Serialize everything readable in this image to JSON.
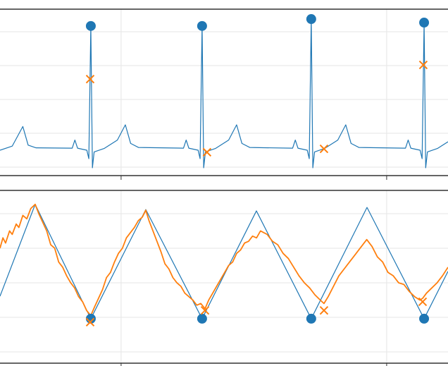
{
  "chart_data": [
    {
      "type": "line",
      "xlim": [
        1.088,
        4.462
      ],
      "ylim": [
        -0.25,
        4.667
      ],
      "xticks": [
        2,
        4
      ],
      "yticks": [
        0,
        1,
        2,
        3,
        4
      ],
      "grid": true,
      "series": [
        {
          "style": "line",
          "color": "#1f77b4",
          "x": [
            1.088,
            1.18,
            1.26,
            1.3,
            1.36,
            1.632,
            1.652,
            1.672,
            1.742,
            1.757,
            1.772,
            1.784,
            1.797,
            1.872,
            1.972,
            2.032,
            2.072,
            2.132,
            2.47,
            2.49,
            2.51,
            2.58,
            2.595,
            2.61,
            2.622,
            2.635,
            2.71,
            2.81,
            2.87,
            2.91,
            2.97,
            3.292,
            3.312,
            3.332,
            3.402,
            3.417,
            3.432,
            3.444,
            3.457,
            3.532,
            3.632,
            3.692,
            3.732,
            3.792,
            4.142,
            4.162,
            4.182,
            4.252,
            4.267,
            4.282,
            4.294,
            4.307,
            4.382,
            4.462
          ],
          "values": [
            0.5,
            0.62,
            1.2,
            0.65,
            0.57,
            0.56,
            0.8,
            0.56,
            0.5,
            0.25,
            4.17,
            -0.02,
            0.45,
            0.55,
            0.8,
            1.25,
            0.7,
            0.58,
            0.56,
            0.8,
            0.56,
            0.5,
            0.25,
            4.17,
            -0.02,
            0.45,
            0.55,
            0.8,
            1.25,
            0.7,
            0.58,
            0.56,
            0.8,
            0.56,
            0.5,
            0.25,
            4.375,
            -0.02,
            0.45,
            0.55,
            0.8,
            1.25,
            0.7,
            0.58,
            0.56,
            0.8,
            0.56,
            0.5,
            0.25,
            4.27,
            -0.02,
            0.45,
            0.55,
            0.75
          ]
        },
        {
          "style": "o",
          "color": "#1f77b4",
          "x": [
            1.772,
            2.61,
            3.432,
            4.282
          ],
          "values": [
            4.17,
            4.17,
            4.375,
            4.27
          ]
        },
        {
          "style": "x",
          "color": "#ff7f0e",
          "x": [
            1.767,
            2.647,
            3.528,
            4.276
          ],
          "values": [
            2.6,
            0.44,
            0.54,
            3.02
          ]
        }
      ]
    },
    {
      "type": "line",
      "xlim": [
        1.088,
        4.462
      ],
      "ylim": [
        -1.327,
        3.673
      ],
      "xticks": [
        2,
        4
      ],
      "yticks": [
        -1,
        0,
        1,
        2,
        3
      ],
      "grid": true,
      "series": [
        {
          "style": "line",
          "color": "#1f77b4",
          "x": [
            1.088,
            1.353,
            1.772,
            2.186,
            2.61,
            3.019,
            3.432,
            3.852,
            4.282,
            4.462
          ],
          "values": [
            0.61,
            3.27,
            -0.04,
            3.12,
            -0.04,
            3.08,
            -0.04,
            3.18,
            -0.04,
            1.33
          ]
        },
        {
          "style": "line",
          "color": "#ff7f0e",
          "x": [
            1.088,
            1.11,
            1.13,
            1.16,
            1.18,
            1.21,
            1.23,
            1.26,
            1.29,
            1.32,
            1.353,
            1.38,
            1.41,
            1.44,
            1.47,
            1.5,
            1.53,
            1.56,
            1.59,
            1.62,
            1.65,
            1.68,
            1.71,
            1.74,
            1.772,
            1.8,
            1.83,
            1.86,
            1.89,
            1.92,
            1.95,
            1.98,
            2.01,
            2.04,
            2.07,
            2.1,
            2.13,
            2.16,
            2.186,
            2.21,
            2.24,
            2.27,
            2.3,
            2.33,
            2.36,
            2.39,
            2.42,
            2.45,
            2.48,
            2.51,
            2.54,
            2.57,
            2.6,
            2.632,
            2.66,
            2.69,
            2.72,
            2.75,
            2.78,
            2.81,
            2.84,
            2.87,
            2.9,
            2.93,
            2.96,
            2.99,
            3.02,
            3.05,
            3.075,
            3.1,
            3.14,
            3.18,
            3.22,
            3.26,
            3.3,
            3.34,
            3.38,
            3.42,
            3.46,
            3.5,
            3.528,
            3.56,
            3.6,
            3.64,
            3.68,
            3.72,
            3.76,
            3.8,
            3.85,
            3.89,
            3.93,
            3.97,
            4.01,
            4.05,
            4.09,
            4.13,
            4.17,
            4.21,
            4.25,
            4.271,
            4.3,
            4.34,
            4.38,
            4.42,
            4.462
          ],
          "values": [
            2.0,
            2.3,
            2.15,
            2.5,
            2.4,
            2.7,
            2.6,
            2.95,
            2.85,
            3.15,
            3.27,
            3.0,
            2.75,
            2.5,
            2.1,
            2.0,
            1.6,
            1.45,
            1.2,
            1.0,
            0.85,
            0.6,
            0.45,
            0.2,
            0.05,
            0.3,
            0.55,
            0.8,
            1.15,
            1.3,
            1.6,
            1.85,
            2.0,
            2.3,
            2.45,
            2.6,
            2.8,
            2.9,
            3.1,
            2.8,
            2.5,
            2.2,
            1.9,
            1.55,
            1.4,
            1.15,
            1.0,
            0.9,
            0.7,
            0.6,
            0.5,
            0.35,
            0.4,
            0.25,
            0.5,
            0.7,
            0.9,
            1.1,
            1.3,
            1.5,
            1.6,
            1.85,
            1.95,
            2.15,
            2.2,
            2.35,
            2.3,
            2.5,
            2.45,
            2.4,
            2.2,
            2.1,
            1.85,
            1.7,
            1.45,
            1.2,
            1.0,
            0.85,
            0.65,
            0.5,
            0.4,
            0.6,
            0.9,
            1.2,
            1.4,
            1.6,
            1.8,
            2.0,
            2.25,
            2.05,
            1.75,
            1.6,
            1.3,
            1.2,
            1.0,
            0.95,
            0.75,
            0.6,
            0.5,
            0.55,
            0.7,
            0.85,
            1.0,
            1.2,
            1.45
          ]
        },
        {
          "style": "o",
          "color": "#1f77b4",
          "x": [
            1.772,
            2.61,
            3.432,
            4.282
          ],
          "values": [
            -0.04,
            -0.04,
            -0.04,
            -0.04
          ]
        },
        {
          "style": "x",
          "color": "#ff7f0e",
          "x": [
            1.767,
            2.632,
            3.528,
            4.271
          ],
          "values": [
            -0.14,
            0.2,
            0.2,
            0.45
          ]
        }
      ]
    }
  ]
}
